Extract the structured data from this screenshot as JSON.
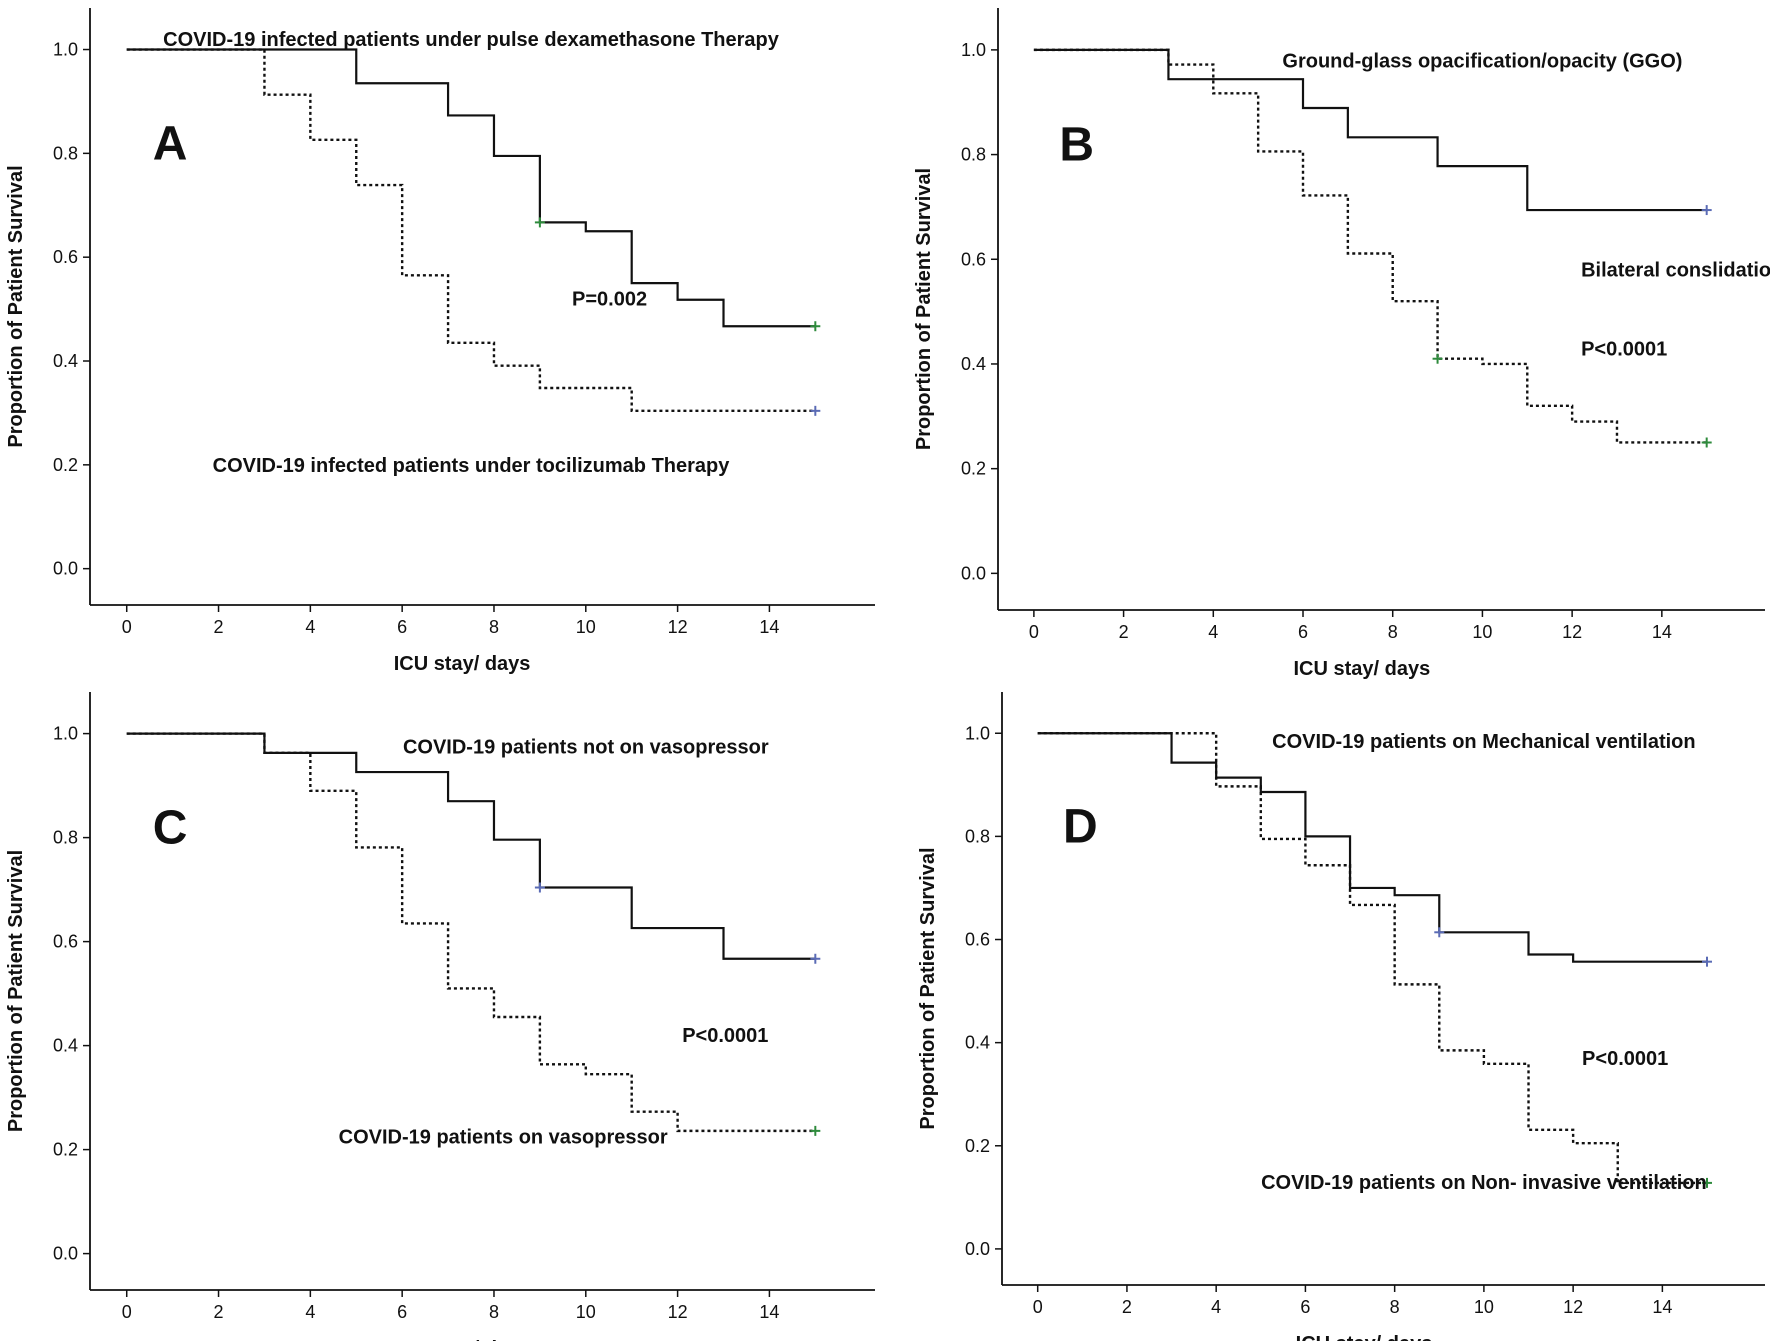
{
  "chart_data": [
    {
      "type": "line",
      "panel": "A",
      "title": "",
      "xlabel": "ICU stay/ days",
      "ylabel": "Proportion of Patient Survival",
      "xlim": [
        -0.8,
        16.3
      ],
      "ylim": [
        -0.07,
        1.08
      ],
      "x_ticks": [
        0,
        2,
        4,
        6,
        8,
        10,
        12,
        14
      ],
      "y_ticks": [
        0.0,
        0.2,
        0.4,
        0.6,
        0.8,
        1.0
      ],
      "series": [
        {
          "name": "COVID-19 infected patients under pulse dexamethasone Therapy",
          "style": "solid",
          "censor_color": "#2e8b3c",
          "x": [
            0,
            5,
            7,
            8,
            9,
            10,
            11,
            12,
            13,
            15
          ],
          "y": [
            1.0,
            0.935,
            0.873,
            0.795,
            0.667,
            0.65,
            0.55,
            0.518,
            0.467,
            0.467
          ],
          "censored": [
            [
              9,
              0.667
            ],
            [
              15,
              0.467
            ]
          ]
        },
        {
          "name": "COVID-19 infected patients under tocilizumab Therapy",
          "style": "dotted",
          "censor_color": "#5a6bb5",
          "x": [
            0,
            3,
            4,
            5,
            6,
            7,
            8,
            9,
            11,
            15
          ],
          "y": [
            1.0,
            0.913,
            0.826,
            0.739,
            0.565,
            0.435,
            0.391,
            0.348,
            0.304,
            0.304
          ],
          "censored": [
            [
              15,
              0.304
            ]
          ]
        }
      ],
      "annotations": [
        {
          "text": "COVID-19 infected patients under pulse dexamethasone Therapy",
          "x": 7.5,
          "y": 1.02
        },
        {
          "text": "P=0.002",
          "x": 9.7,
          "y": 0.52
        },
        {
          "text": "COVID-19 infected patients under tocilizumab Therapy",
          "x": 7.5,
          "y": 0.2
        }
      ]
    },
    {
      "type": "line",
      "panel": "B",
      "title": "",
      "xlabel": "ICU stay/ days",
      "ylabel": "Proportion of Patient Survival",
      "xlim": [
        -0.8,
        16.3
      ],
      "ylim": [
        -0.07,
        1.08
      ],
      "x_ticks": [
        0,
        2,
        4,
        6,
        8,
        10,
        12,
        14
      ],
      "y_ticks": [
        0.0,
        0.2,
        0.4,
        0.6,
        0.8,
        1.0
      ],
      "series": [
        {
          "name": "Ground-glass opacification/opacity (GGO)",
          "style": "solid",
          "censor_color": "#5a6bb5",
          "x": [
            0,
            3,
            6,
            7,
            9,
            11,
            15
          ],
          "y": [
            1.0,
            0.944,
            0.889,
            0.833,
            0.778,
            0.694,
            0.694
          ],
          "censored": [
            [
              15,
              0.694
            ]
          ]
        },
        {
          "name": "Bilateral conslidation + GGO",
          "style": "dotted",
          "censor_color": "#2e8b3c",
          "x": [
            0,
            3,
            4,
            5,
            6,
            7,
            8,
            9,
            10,
            11,
            12,
            13,
            15
          ],
          "y": [
            1.0,
            0.972,
            0.917,
            0.806,
            0.722,
            0.611,
            0.52,
            0.41,
            0.4,
            0.32,
            0.29,
            0.25,
            0.25
          ],
          "censored": [
            [
              9,
              0.41
            ],
            [
              15,
              0.25
            ]
          ]
        }
      ],
      "annotations": [
        {
          "text": "Ground-glass opacification/opacity (GGO)",
          "x": 10,
          "y": 0.98
        },
        {
          "text": "Bilateral conslidation + GGO",
          "x": 12.2,
          "y": 0.58
        },
        {
          "text": "P<0.0001",
          "x": 12.2,
          "y": 0.43
        }
      ]
    },
    {
      "type": "line",
      "panel": "C",
      "title": "",
      "xlabel": "ICU stay/ days",
      "ylabel": "Proportion of Patient Survival",
      "xlim": [
        -0.8,
        16.3
      ],
      "ylim": [
        -0.07,
        1.08
      ],
      "x_ticks": [
        0,
        2,
        4,
        6,
        8,
        10,
        12,
        14
      ],
      "y_ticks": [
        0.0,
        0.2,
        0.4,
        0.6,
        0.8,
        1.0
      ],
      "series": [
        {
          "name": "COVID-19 patients not on vasopressor",
          "style": "solid",
          "censor_color": "#5a6bb5",
          "x": [
            0,
            3,
            5,
            7,
            8,
            9,
            11,
            13,
            15
          ],
          "y": [
            1.0,
            0.963,
            0.926,
            0.87,
            0.796,
            0.704,
            0.626,
            0.567,
            0.567
          ],
          "censored": [
            [
              9,
              0.704
            ],
            [
              15,
              0.567
            ]
          ]
        },
        {
          "name": "COVID-19 patients on vasopressor",
          "style": "dotted",
          "censor_color": "#2e8b3c",
          "x": [
            0,
            3,
            4,
            5,
            6,
            7,
            8,
            9,
            10,
            11,
            12,
            15
          ],
          "y": [
            1.0,
            0.963,
            0.89,
            0.781,
            0.635,
            0.51,
            0.455,
            0.364,
            0.345,
            0.273,
            0.236,
            0.236
          ],
          "censored": [
            [
              15,
              0.236
            ]
          ]
        }
      ],
      "annotations": [
        {
          "text": "COVID-19 patients not on vasopressor",
          "x": 10,
          "y": 0.975
        },
        {
          "text": "P<0.0001",
          "x": 12.1,
          "y": 0.42
        },
        {
          "text": "COVID-19 patients on vasopressor",
          "x": 8.2,
          "y": 0.225
        }
      ]
    },
    {
      "type": "line",
      "panel": "D",
      "title": "",
      "xlabel": "ICU stay/ days",
      "ylabel": "Proportion of Patient Survival",
      "xlim": [
        -0.8,
        16.3
      ],
      "ylim": [
        -0.07,
        1.08
      ],
      "x_ticks": [
        0,
        2,
        4,
        6,
        8,
        10,
        12,
        14
      ],
      "y_ticks": [
        0.0,
        0.2,
        0.4,
        0.6,
        0.8,
        1.0
      ],
      "series": [
        {
          "name": "COVID-19 patients on Mechanical ventilation",
          "style": "solid",
          "censor_color": "#5a6bb5",
          "x": [
            0,
            3,
            4,
            5,
            6,
            7,
            8,
            9,
            11,
            12,
            15
          ],
          "y": [
            1.0,
            0.943,
            0.914,
            0.886,
            0.8,
            0.7,
            0.686,
            0.614,
            0.571,
            0.557,
            0.557
          ],
          "censored": [
            [
              9,
              0.614
            ],
            [
              15,
              0.557
            ]
          ]
        },
        {
          "name": "COVID-19 patients on Non- invasive ventilation",
          "style": "dotted",
          "censor_color": "#2e8b3c",
          "x": [
            0,
            4,
            5,
            6,
            7,
            8,
            9,
            10,
            11,
            12,
            13,
            15
          ],
          "y": [
            1.0,
            0.897,
            0.795,
            0.744,
            0.667,
            0.513,
            0.385,
            0.359,
            0.231,
            0.205,
            0.128,
            0.128
          ],
          "censored": [
            [
              15,
              0.128
            ]
          ]
        }
      ],
      "annotations": [
        {
          "text": "COVID-19 patients on Mechanical ventilation",
          "x": 10,
          "y": 0.985
        },
        {
          "text": "P<0.0001",
          "x": 12.2,
          "y": 0.37
        },
        {
          "text": "COVID-19 patients on Non- invasive ventilation",
          "x": 10,
          "y": 0.13
        }
      ]
    }
  ]
}
